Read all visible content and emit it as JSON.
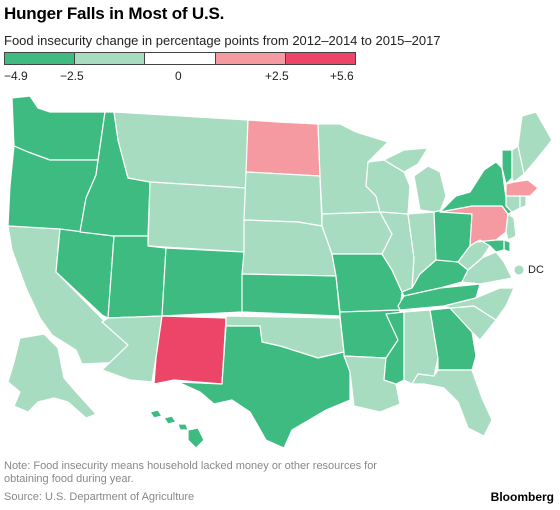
{
  "title": "Hunger Falls in Most of U.S.",
  "subtitle": "Food insecurity change in percentage points from 2012–2014 to 2015–2017",
  "legend": {
    "bins": [
      {
        "color": "#3dbb80"
      },
      {
        "color": "#a8dcc0"
      },
      {
        "color": "#ffffff"
      },
      {
        "color": "#f59aa0"
      },
      {
        "color": "#ec4567"
      }
    ],
    "ticks": [
      "−4.9",
      "−2.5",
      "0",
      "+2.5",
      "+5.6"
    ]
  },
  "colors": {
    "dark_green": "#3dbb80",
    "light_green": "#a8dcc0",
    "light_red": "#f59aa0",
    "dark_red": "#ec4567"
  },
  "dc_label": "DC",
  "note": "Note: Food insecurity means household lacked money or other resources for obtaining food during year.",
  "source": "Source: U.S. Department of Agriculture",
  "brand": "Bloomberg"
}
